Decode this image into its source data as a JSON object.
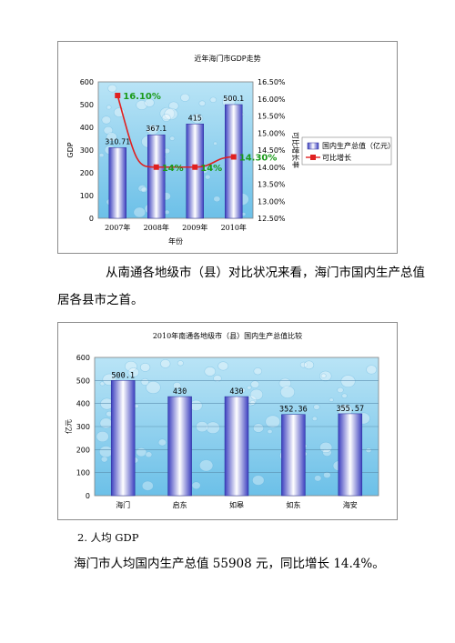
{
  "chart_data": [
    {
      "type": "bar+line",
      "title": "近年海门市GDP走势",
      "categories": [
        "2007年",
        "2008年",
        "2009年",
        "2010年"
      ],
      "xlabel": "年份",
      "ylabel": "GDP",
      "y2label": "可比增长率",
      "ylim": [
        0,
        600
      ],
      "y2lim": [
        0.125,
        0.165
      ],
      "yticks": [
        "0",
        "100",
        "200",
        "300",
        "400",
        "500",
        "600"
      ],
      "y2ticks": [
        "12.50%",
        "13.00%",
        "13.50%",
        "14.00%",
        "14.50%",
        "15.00%",
        "15.50%",
        "16.00%",
        "16.50%"
      ],
      "series": [
        {
          "name": "国内生产总值（亿元）",
          "type": "bar",
          "values": [
            310.71,
            367.1,
            415,
            500.1
          ],
          "labels": [
            "310.71",
            "367.1",
            "415",
            "500.1"
          ]
        },
        {
          "name": "可比增长",
          "type": "line",
          "values": [
            0.161,
            0.14,
            0.14,
            0.143
          ],
          "labels": [
            "16.10%",
            "14%",
            "14%",
            "14.30%"
          ]
        }
      ],
      "legend_position": "right",
      "colors": {
        "bar": "#3b3fbf",
        "line": "#e02020",
        "label_green": "#1a9a1a",
        "plot_bg": "#8fd0ee"
      }
    },
    {
      "type": "bar",
      "title": "2010年南通各地级市（县）国内生产总值比较",
      "categories": [
        "海门",
        "启东",
        "如皋",
        "如东",
        "海安"
      ],
      "values": [
        500.1,
        430,
        430,
        352.36,
        355.57
      ],
      "labels": [
        "500.1",
        "430",
        "430",
        "352.36",
        "355.57"
      ],
      "ylabel": "亿元",
      "ylim": [
        0,
        600
      ],
      "yticks": [
        "0",
        "100",
        "200",
        "300",
        "400",
        "500",
        "600"
      ],
      "grid": true,
      "colors": {
        "bar": "#3b3fbf",
        "plot_bg": "#8fd0ee"
      }
    }
  ],
  "text": {
    "para1_line1": "从南通各地级市（县）对比状况来看，海门市国内生产总值",
    "para1_line2": "居各县市之首。",
    "section_heading": "2.  人均 GDP",
    "para2": "海门市人均国内生产总值 55908 元，同比增长 14.4%。"
  }
}
